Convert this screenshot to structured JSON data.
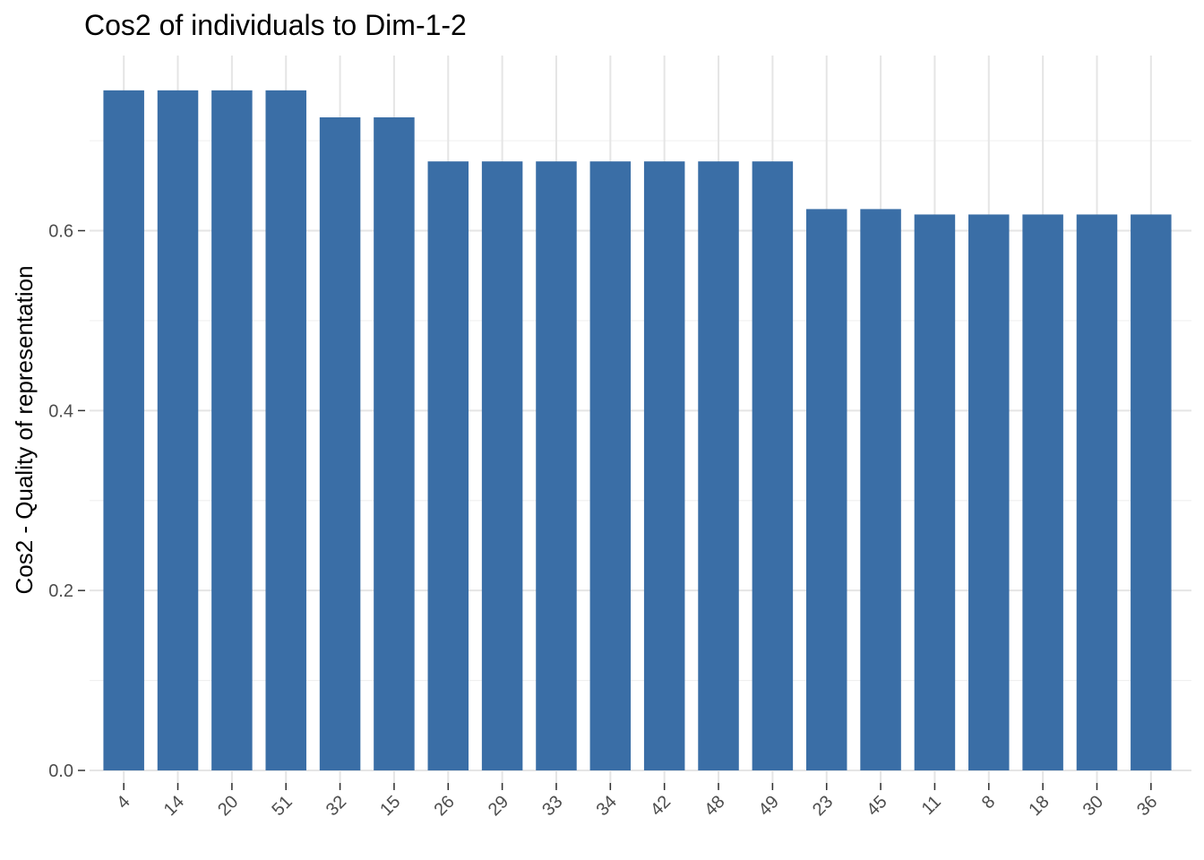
{
  "chart_data": {
    "type": "bar",
    "title": "Cos2 of individuals to Dim-1-2",
    "xlabel": "",
    "ylabel": "Cos2 - Quality of representation",
    "categories": [
      "4",
      "14",
      "20",
      "51",
      "32",
      "15",
      "26",
      "29",
      "33",
      "34",
      "42",
      "48",
      "49",
      "23",
      "45",
      "11",
      "8",
      "18",
      "30",
      "36"
    ],
    "values": [
      0.756,
      0.756,
      0.756,
      0.756,
      0.726,
      0.726,
      0.677,
      0.677,
      0.677,
      0.677,
      0.677,
      0.677,
      0.677,
      0.624,
      0.624,
      0.618,
      0.618,
      0.618,
      0.618,
      0.618
    ],
    "yticks": [
      0.0,
      0.2,
      0.4,
      0.6
    ],
    "ytick_labels": [
      "0.0",
      "0.2",
      "0.4",
      "0.6"
    ],
    "ylim": [
      0,
      0.794
    ],
    "grid": true,
    "legend": "none",
    "bar_color": "#3A6EA6"
  }
}
